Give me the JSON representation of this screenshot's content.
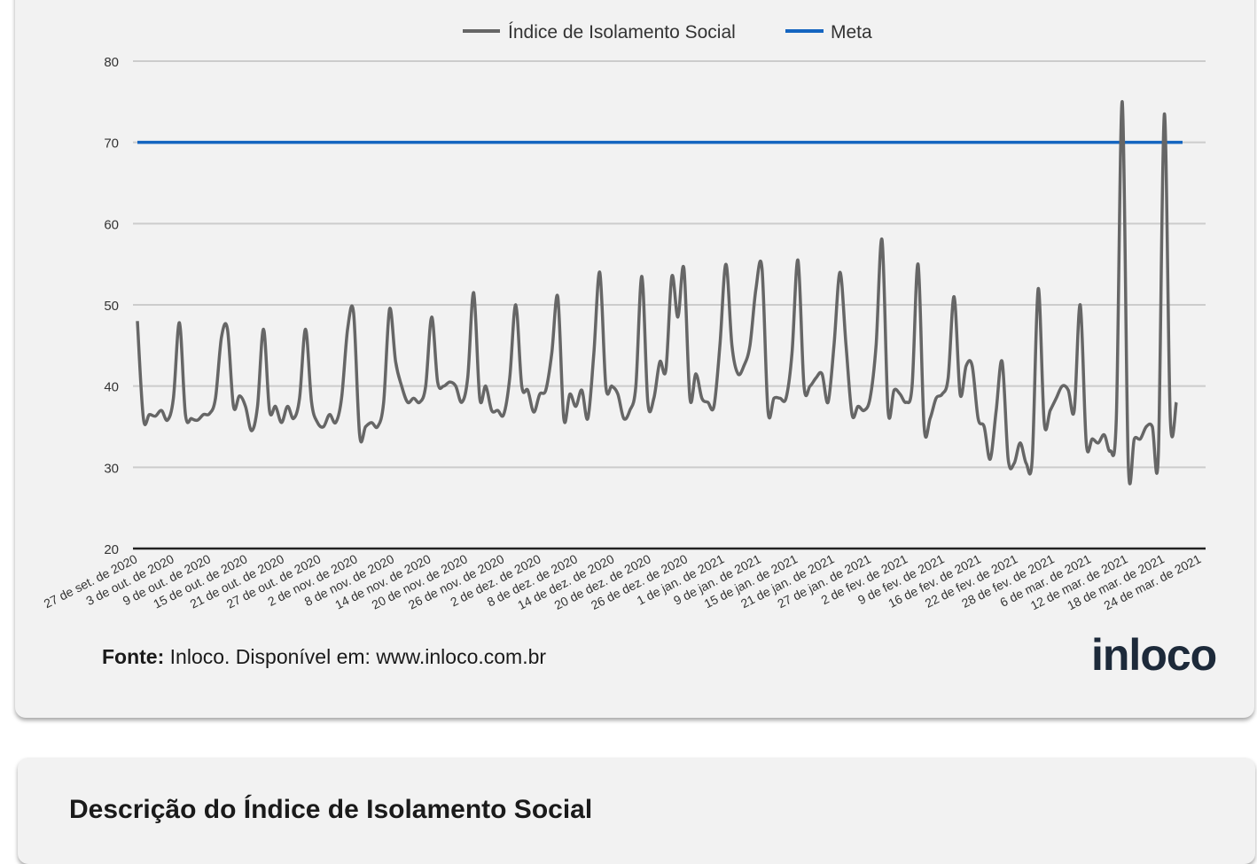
{
  "legend": {
    "series_label": "Índice de Isolamento Social",
    "target_label": "Meta"
  },
  "source": {
    "prefix": "Fonte:",
    "text": " Inloco. Disponível em: www.inloco.com.br"
  },
  "logo_text": "inloco",
  "next_card_title": "Descrição do Índice de Isolamento Social",
  "colors": {
    "series": "#666666",
    "target": "#1565c0",
    "grid": "#cccccc",
    "axis": "#222222",
    "background": "#f2f2f2"
  },
  "chart_data": {
    "type": "line",
    "title": "",
    "xlabel": "",
    "ylabel": "",
    "ylim": [
      20,
      80
    ],
    "yticks": [
      20,
      30,
      40,
      50,
      60,
      70,
      80
    ],
    "grid": true,
    "legend_position": "top",
    "x_tick_labels": [
      "27 de set. de 2020",
      "3 de out. de 2020",
      "9 de out. de 2020",
      "15 de out. de 2020",
      "21 de out. de 2020",
      "27 de out. de 2020",
      "2 de nov. de 2020",
      "8 de nov. de 2020",
      "14 de nov. de 2020",
      "20 de nov. de 2020",
      "26 de nov. de 2020",
      "2 de dez. de 2020",
      "8 de dez. de 2020",
      "14 de dez. de 2020",
      "20 de dez. de 2020",
      "26 de dez. de 2020",
      "1 de jan. de 2021",
      "9 de jan. de 2021",
      "15 de jan. de 2021",
      "21 de jan. de 2021",
      "27 de jan. de 2021",
      "2 de fev. de 2021",
      "9 de fev. de 2021",
      "16 de fev. de 2021",
      "22 de fev. de 2021",
      "28 de fev. de 2021",
      "6 de mar. de 2021",
      "12 de mar. de 2021",
      "18 de mar. de 2021",
      "24 de mar. de 2021"
    ],
    "x_start": "2020-09-27",
    "x_end": "2021-03-28",
    "series": [
      {
        "name": "Índice de Isolamento Social",
        "values": [
          48,
          36,
          36.5,
          36.3,
          37,
          35.8,
          38.5,
          47.8,
          36.5,
          36,
          35.8,
          36.5,
          36.6,
          38.5,
          46,
          47,
          37.5,
          38.8,
          37.5,
          34.5,
          37.5,
          47,
          37,
          37.5,
          35.5,
          37.5,
          36,
          38.5,
          47,
          38,
          35.5,
          35,
          36.5,
          35.5,
          38.5,
          47,
          49,
          34,
          35,
          35.5,
          35,
          38,
          49.5,
          43,
          40,
          38,
          38.5,
          38,
          40,
          48.5,
          40.5,
          40,
          40.5,
          40,
          38,
          41,
          51.5,
          38.5,
          40,
          37,
          37,
          36.5,
          41,
          50,
          40,
          39.5,
          36.8,
          39,
          39.5,
          44,
          51,
          36,
          39,
          37.5,
          39.5,
          36,
          44,
          54,
          40,
          40,
          39,
          36,
          37,
          40,
          53.5,
          38,
          38.5,
          43,
          42,
          53.5,
          48.5,
          54.5,
          38.5,
          41.5,
          38.5,
          38,
          37.5,
          45,
          55,
          45,
          41.5,
          42.5,
          45,
          52,
          54.5,
          37,
          38.5,
          38.5,
          38.5,
          44,
          55.5,
          40,
          40,
          41,
          41.5,
          38,
          45,
          54,
          45,
          36.5,
          37.5,
          37,
          38.5,
          45,
          58,
          37,
          39.5,
          39,
          38,
          40,
          55,
          35,
          36,
          38.5,
          39,
          41,
          51,
          39,
          42.5,
          42.5,
          36,
          35,
          31,
          37,
          43,
          31,
          30.5,
          33,
          30.5,
          31,
          52,
          35.5,
          37,
          38.5,
          40,
          39.5,
          37,
          50,
          33,
          33.5,
          33,
          34,
          32,
          36,
          75,
          30.5,
          33.5,
          33.5,
          35,
          35,
          31.5,
          73.5,
          36,
          38
        ]
      },
      {
        "name": "Meta",
        "values": [
          70,
          70
        ]
      }
    ]
  }
}
